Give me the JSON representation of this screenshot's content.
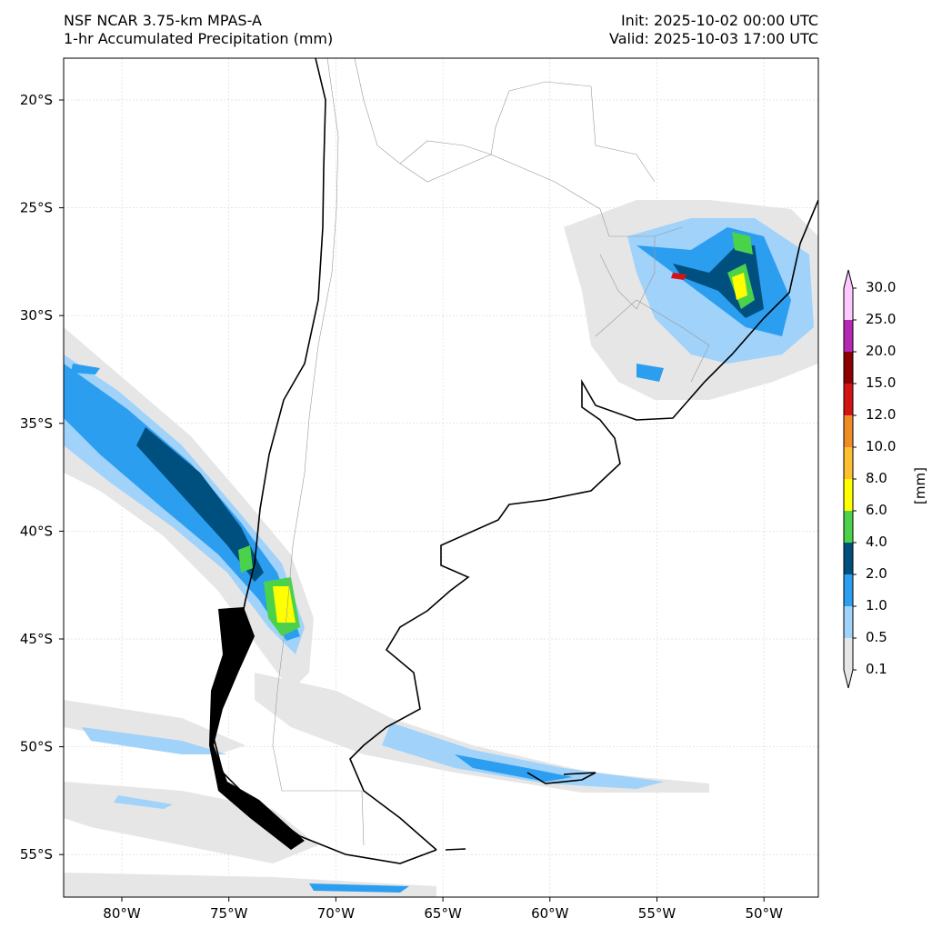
{
  "header": {
    "model": "NSF NCAR 3.75-km MPAS-A",
    "field": "1-hr Accumulated Precipitation (mm)",
    "init": "Init: 2025-10-02 00:00 UTC",
    "valid": "Valid: 2025-10-03 17:00 UTC"
  },
  "axes": {
    "lon_ticks": [
      "80°W",
      "75°W",
      "70°W",
      "65°W",
      "60°W",
      "55°W",
      "50°W"
    ],
    "lat_ticks": [
      "20°S",
      "25°S",
      "30°S",
      "35°S",
      "40°S",
      "45°S",
      "50°S",
      "55°S"
    ]
  },
  "colorbar": {
    "unit": "[mm]",
    "levels": [
      "0.1",
      "0.5",
      "1.0",
      "2.0",
      "4.0",
      "6.0",
      "8.0",
      "10.0",
      "12.0",
      "15.0",
      "20.0",
      "25.0",
      "30.0"
    ],
    "colors": [
      "#e6e6e6",
      "#a0d2fa",
      "#2c9ef0",
      "#00507f",
      "#4bd24b",
      "#ffff00",
      "#ffbf30",
      "#f08c28",
      "#d21414",
      "#8c0000",
      "#b428b4",
      "#ffc8ff"
    ]
  }
}
